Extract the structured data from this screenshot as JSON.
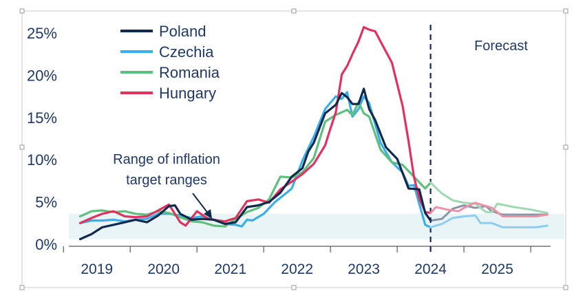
{
  "chart_data": {
    "type": "line",
    "title": "",
    "xlabel": "",
    "ylabel": "",
    "x_range": [
      2018.58,
      2025.85
    ],
    "ylim": [
      0,
      27
    ],
    "y_ticks": [
      {
        "value": 0,
        "label": "0%"
      },
      {
        "value": 5,
        "label": "5%"
      },
      {
        "value": 10,
        "label": "10%"
      },
      {
        "value": 15,
        "label": "15%"
      },
      {
        "value": 20,
        "label": "20%"
      },
      {
        "value": 25,
        "label": "25%"
      }
    ],
    "x_ticks": [
      {
        "value": 2019,
        "label": "2019"
      },
      {
        "value": 2020,
        "label": "2020"
      },
      {
        "value": 2021,
        "label": "2021"
      },
      {
        "value": 2022,
        "label": "2022"
      },
      {
        "value": 2023,
        "label": "2023"
      },
      {
        "value": 2024,
        "label": "2024"
      },
      {
        "value": 2025,
        "label": "2025"
      }
    ],
    "target_band": {
      "from": 0.6,
      "to": 3.6,
      "color": "#e8f4f6"
    },
    "forecast_start": 2024.0,
    "legend_position": "top-left",
    "annotations": {
      "forecast": "Forecast",
      "band_line1": "Range of inflation",
      "band_line2": "target ranges"
    },
    "series": [
      {
        "name": "Poland",
        "color": "#13294b",
        "forecast_color": "#8795a6",
        "points": [
          [
            2018.75,
            0.6
          ],
          [
            2018.92,
            1.2
          ],
          [
            2019.08,
            2.0
          ],
          [
            2019.25,
            2.3
          ],
          [
            2019.42,
            2.6
          ],
          [
            2019.58,
            2.9
          ],
          [
            2019.75,
            2.6
          ],
          [
            2019.92,
            3.4
          ],
          [
            2020.08,
            4.5
          ],
          [
            2020.17,
            4.6
          ],
          [
            2020.25,
            3.6
          ],
          [
            2020.42,
            2.9
          ],
          [
            2020.58,
            3.0
          ],
          [
            2020.75,
            2.9
          ],
          [
            2020.92,
            2.4
          ],
          [
            2021.08,
            2.6
          ],
          [
            2021.25,
            4.4
          ],
          [
            2021.42,
            4.6
          ],
          [
            2021.58,
            5.0
          ],
          [
            2021.75,
            6.1
          ],
          [
            2021.92,
            8.0
          ],
          [
            2022.08,
            9.0
          ],
          [
            2022.17,
            11.0
          ],
          [
            2022.25,
            12.0
          ],
          [
            2022.42,
            15.5
          ],
          [
            2022.58,
            16.5
          ],
          [
            2022.67,
            17.9
          ],
          [
            2022.75,
            17.4
          ],
          [
            2022.83,
            16.6
          ],
          [
            2022.92,
            16.6
          ],
          [
            2023.0,
            18.4
          ],
          [
            2023.08,
            16.0
          ],
          [
            2023.17,
            14.7
          ],
          [
            2023.33,
            11.5
          ],
          [
            2023.5,
            10.1
          ],
          [
            2023.67,
            6.6
          ],
          [
            2023.83,
            6.5
          ],
          [
            2023.92,
            3.7
          ],
          [
            2024.0,
            2.8
          ],
          [
            2024.17,
            3.0
          ],
          [
            2024.33,
            4.2
          ],
          [
            2024.5,
            4.6
          ],
          [
            2024.67,
            4.3
          ],
          [
            2024.83,
            4.5
          ],
          [
            2024.92,
            3.9
          ],
          [
            2025.08,
            3.5
          ],
          [
            2025.33,
            3.5
          ],
          [
            2025.58,
            3.5
          ],
          [
            2025.75,
            3.5
          ]
        ]
      },
      {
        "name": "Czechia",
        "color": "#3aaee8",
        "forecast_color": "#8dcdef",
        "points": [
          [
            2018.75,
            2.5
          ],
          [
            2018.92,
            2.8
          ],
          [
            2019.08,
            2.8
          ],
          [
            2019.25,
            2.9
          ],
          [
            2019.42,
            2.7
          ],
          [
            2019.58,
            2.9
          ],
          [
            2019.75,
            3.0
          ],
          [
            2019.92,
            3.6
          ],
          [
            2020.08,
            3.6
          ],
          [
            2020.25,
            3.4
          ],
          [
            2020.42,
            3.1
          ],
          [
            2020.58,
            3.3
          ],
          [
            2020.75,
            2.9
          ],
          [
            2020.92,
            2.4
          ],
          [
            2021.08,
            2.3
          ],
          [
            2021.17,
            2.1
          ],
          [
            2021.25,
            2.9
          ],
          [
            2021.33,
            2.8
          ],
          [
            2021.5,
            3.6
          ],
          [
            2021.67,
            5.0
          ],
          [
            2021.83,
            6.0
          ],
          [
            2021.92,
            6.6
          ],
          [
            2022.08,
            9.9
          ],
          [
            2022.25,
            12.7
          ],
          [
            2022.42,
            16.0
          ],
          [
            2022.58,
            17.5
          ],
          [
            2022.67,
            17.2
          ],
          [
            2022.75,
            18.0
          ],
          [
            2022.83,
            15.1
          ],
          [
            2022.92,
            16.0
          ],
          [
            2023.0,
            17.5
          ],
          [
            2023.08,
            16.7
          ],
          [
            2023.25,
            12.0
          ],
          [
            2023.42,
            9.7
          ],
          [
            2023.58,
            8.5
          ],
          [
            2023.67,
            6.9
          ],
          [
            2023.75,
            7.0
          ],
          [
            2023.92,
            2.3
          ],
          [
            2024.0,
            2.0
          ],
          [
            2024.17,
            2.4
          ],
          [
            2024.33,
            3.1
          ],
          [
            2024.5,
            3.3
          ],
          [
            2024.67,
            3.4
          ],
          [
            2024.75,
            2.5
          ],
          [
            2024.92,
            2.5
          ],
          [
            2025.08,
            2.0
          ],
          [
            2025.33,
            2.0
          ],
          [
            2025.58,
            2.0
          ],
          [
            2025.75,
            2.2
          ]
        ]
      },
      {
        "name": "Romania",
        "color": "#5fbf7d",
        "forecast_color": "#a0d8b1",
        "points": [
          [
            2018.75,
            3.3
          ],
          [
            2018.92,
            3.9
          ],
          [
            2019.08,
            4.0
          ],
          [
            2019.25,
            3.8
          ],
          [
            2019.42,
            3.9
          ],
          [
            2019.58,
            3.6
          ],
          [
            2019.75,
            3.5
          ],
          [
            2019.92,
            3.9
          ],
          [
            2020.08,
            3.7
          ],
          [
            2020.25,
            3.2
          ],
          [
            2020.42,
            2.7
          ],
          [
            2020.58,
            2.6
          ],
          [
            2020.75,
            2.2
          ],
          [
            2020.92,
            2.1
          ],
          [
            2021.08,
            3.0
          ],
          [
            2021.25,
            3.8
          ],
          [
            2021.42,
            4.3
          ],
          [
            2021.58,
            5.3
          ],
          [
            2021.75,
            8.0
          ],
          [
            2021.92,
            7.9
          ],
          [
            2022.08,
            8.5
          ],
          [
            2022.25,
            10.2
          ],
          [
            2022.42,
            14.5
          ],
          [
            2022.58,
            15.3
          ],
          [
            2022.75,
            15.9
          ],
          [
            2022.83,
            15.3
          ],
          [
            2022.92,
            16.8
          ],
          [
            2023.0,
            15.5
          ],
          [
            2023.08,
            15.1
          ],
          [
            2023.25,
            11.2
          ],
          [
            2023.42,
            9.7
          ],
          [
            2023.58,
            9.4
          ],
          [
            2023.75,
            8.0
          ],
          [
            2023.92,
            6.6
          ],
          [
            2024.0,
            7.3
          ],
          [
            2024.17,
            6.0
          ],
          [
            2024.33,
            5.2
          ],
          [
            2024.5,
            4.9
          ],
          [
            2024.67,
            4.8
          ],
          [
            2024.83,
            3.8
          ],
          [
            2024.92,
            3.8
          ],
          [
            2025.0,
            4.8
          ],
          [
            2025.25,
            4.4
          ],
          [
            2025.5,
            4.1
          ],
          [
            2025.75,
            3.7
          ]
        ]
      },
      {
        "name": "Hungary",
        "color": "#e0325f",
        "forecast_color": "#ee8fa8",
        "points": [
          [
            2018.75,
            2.5
          ],
          [
            2018.92,
            3.1
          ],
          [
            2019.08,
            3.6
          ],
          [
            2019.25,
            3.9
          ],
          [
            2019.42,
            3.3
          ],
          [
            2019.58,
            3.2
          ],
          [
            2019.75,
            3.3
          ],
          [
            2019.92,
            4.0
          ],
          [
            2020.08,
            4.7
          ],
          [
            2020.25,
            2.6
          ],
          [
            2020.33,
            2.2
          ],
          [
            2020.5,
            3.9
          ],
          [
            2020.67,
            3.0
          ],
          [
            2020.83,
            2.8
          ],
          [
            2020.92,
            2.7
          ],
          [
            2021.08,
            3.1
          ],
          [
            2021.25,
            5.1
          ],
          [
            2021.42,
            5.3
          ],
          [
            2021.58,
            4.9
          ],
          [
            2021.75,
            6.5
          ],
          [
            2021.92,
            7.4
          ],
          [
            2022.08,
            8.3
          ],
          [
            2022.25,
            9.5
          ],
          [
            2022.42,
            11.7
          ],
          [
            2022.5,
            13.7
          ],
          [
            2022.58,
            15.6
          ],
          [
            2022.67,
            20.1
          ],
          [
            2022.75,
            21.1
          ],
          [
            2022.83,
            22.5
          ],
          [
            2022.92,
            24.0
          ],
          [
            2023.0,
            25.7
          ],
          [
            2023.08,
            25.4
          ],
          [
            2023.17,
            25.2
          ],
          [
            2023.25,
            24.0
          ],
          [
            2023.42,
            21.5
          ],
          [
            2023.58,
            16.4
          ],
          [
            2023.67,
            12.2
          ],
          [
            2023.75,
            8.0
          ],
          [
            2023.83,
            5.5
          ],
          [
            2023.92,
            3.8
          ],
          [
            2024.0,
            3.7
          ],
          [
            2024.08,
            4.4
          ],
          [
            2024.25,
            4.1
          ],
          [
            2024.42,
            3.9
          ],
          [
            2024.5,
            4.3
          ],
          [
            2024.67,
            4.9
          ],
          [
            2024.92,
            4.3
          ],
          [
            2025.08,
            3.3
          ],
          [
            2025.33,
            3.3
          ],
          [
            2025.58,
            3.3
          ],
          [
            2025.75,
            3.5
          ]
        ]
      }
    ]
  }
}
